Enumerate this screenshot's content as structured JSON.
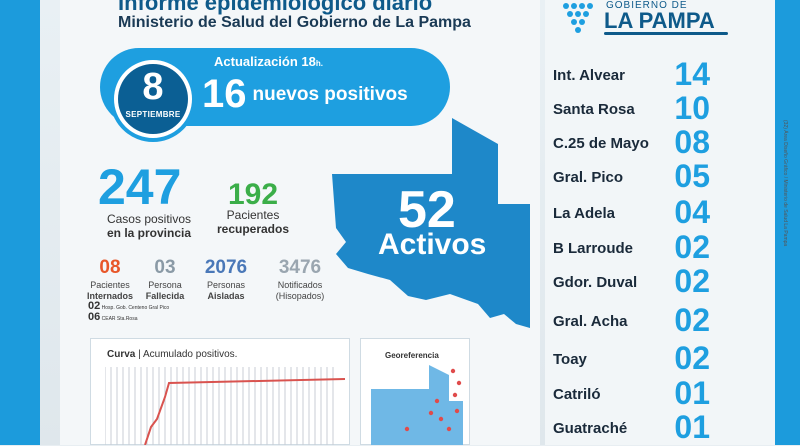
{
  "header": {
    "title": "Informe epidemiológico diario",
    "subtitle": "Ministerio de Salud del Gobierno de La Pampa"
  },
  "date": {
    "day": "8",
    "month": "SEPTIEMBRE"
  },
  "update": {
    "label": "Actualización 18",
    "suffix": "h."
  },
  "new_positives": {
    "count": "16",
    "label": "nuevos positivos"
  },
  "totals": {
    "cases": {
      "value": "247",
      "label_line1": "Casos positivos",
      "label_line2": "en la provincia"
    },
    "recovered": {
      "value": "192",
      "label_line1": "Pacientes",
      "label_line2": "recuperados"
    },
    "active": {
      "value": "52",
      "label": "Activos"
    }
  },
  "stats": [
    {
      "value": "08",
      "line1": "Pacientes",
      "line2": "Internados",
      "color": "#e8572a"
    },
    {
      "value": "03",
      "line1": "Persona",
      "line2": "Fallecida",
      "color": "#8a9aa6"
    },
    {
      "value": "2076",
      "line1": "Personas",
      "line2": "Aisladas",
      "color": "#4a78b8"
    },
    {
      "value": "3476",
      "line1": "Notificados",
      "line2": "(Hisopados)",
      "color": "#9aa6b0"
    }
  ],
  "hospitals": [
    {
      "count": "02",
      "name": "Hosp. Gob. Centeno Gral Pico"
    },
    {
      "count": "06",
      "name": "CEAR Sta.Rosa"
    }
  ],
  "chart": {
    "title": "Curva",
    "subtitle": "Acumulado positivos."
  },
  "geo": {
    "title": "Georeferencia"
  },
  "logo": {
    "line1": "GOBIERNO DE",
    "line2": "LA PAMPA"
  },
  "localities": [
    {
      "name": "Int. Alvear",
      "count": "14"
    },
    {
      "name": "Santa Rosa",
      "count": "10"
    },
    {
      "name": "C.25 de Mayo",
      "count": "08"
    },
    {
      "name": "Gral. Pico",
      "count": "05"
    },
    {
      "name": "La Adela",
      "count": "04"
    },
    {
      "name": "B Larroude",
      "count": "02"
    },
    {
      "name": "Gdor. Duval",
      "count": "02"
    },
    {
      "name": "Gral. Acha",
      "count": "02"
    },
    {
      "name": "Toay",
      "count": "02"
    },
    {
      "name": "Catriló",
      "count": "01"
    },
    {
      "name": "Guatraché",
      "count": "01"
    }
  ],
  "side_note": "(32) Área Diseño Gráfico / Ministerio de Salud La Pampa",
  "colors": {
    "accent": "#1e9fe0",
    "dark": "#0b5f94",
    "green": "#3bae49",
    "curve": "#d9534f"
  }
}
